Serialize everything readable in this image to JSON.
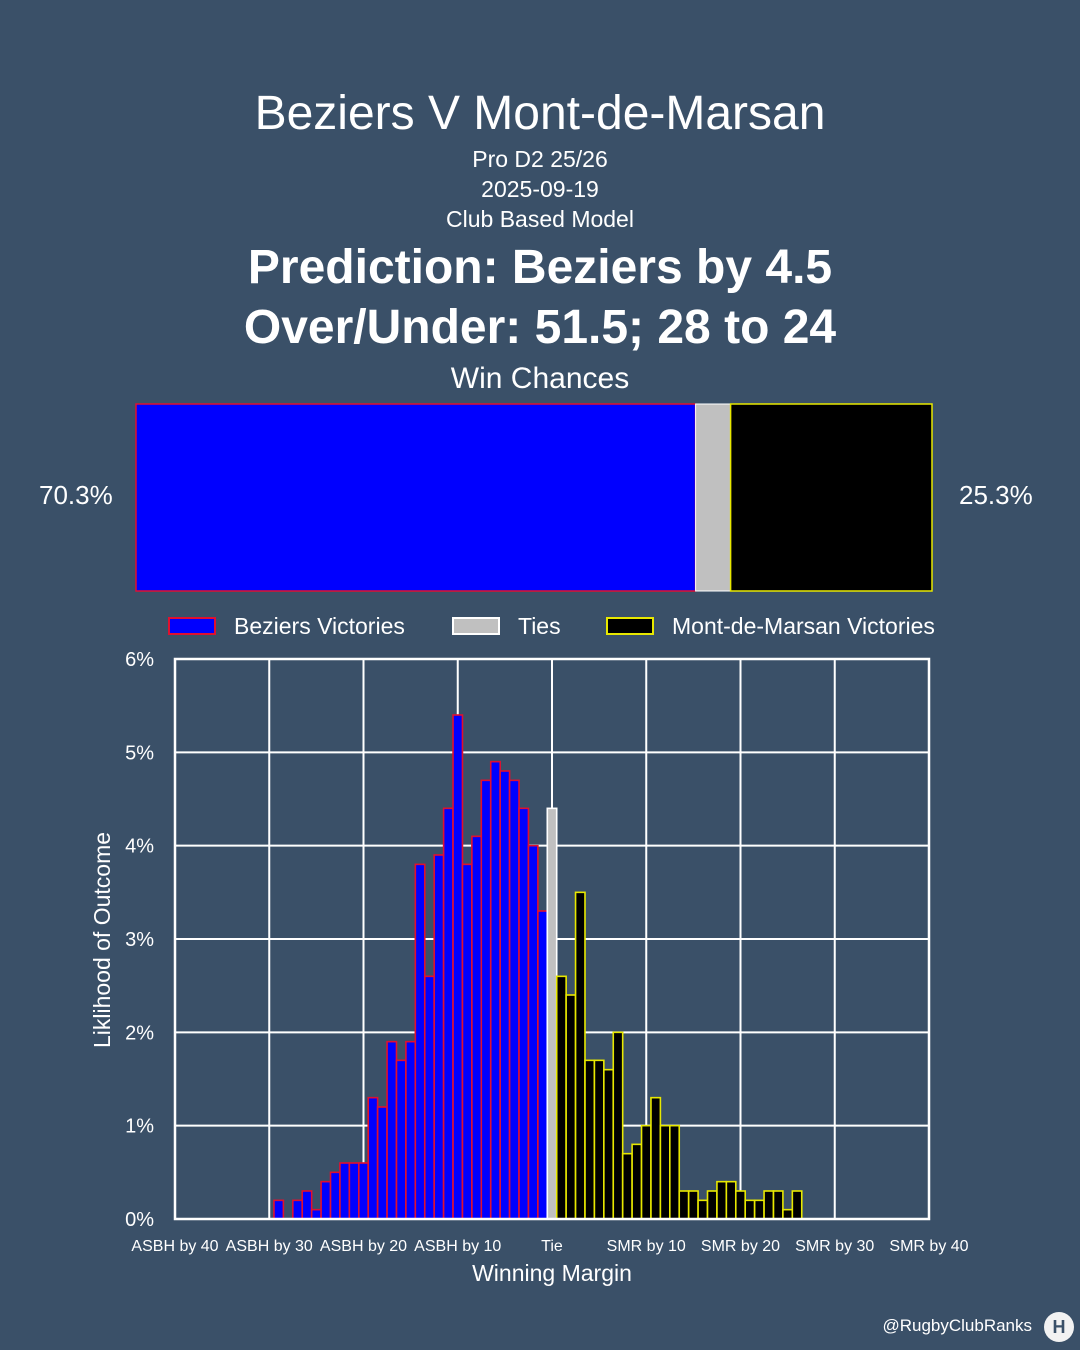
{
  "header": {
    "title": "Beziers V Mont-de-Marsan",
    "competition": "Pro D2 25/26",
    "date": "2025-09-19",
    "model": "Club Based Model",
    "prediction": "Prediction: Beziers by 4.5",
    "over_under": "Over/Under: 51.5; 28 to 24"
  },
  "win_chances": {
    "title": "Win Chances",
    "home_pct_label": "70.3%",
    "away_pct_label": "25.3%",
    "home": 70.3,
    "tie": 4.4,
    "away": 25.3
  },
  "legend": {
    "home": "Beziers Victories",
    "ties": "Ties",
    "away": "Mont-de-Marsan Victories"
  },
  "colors": {
    "background": "#3a5068",
    "home_fill": "#0000ff",
    "home_edge": "#e01030",
    "tie_fill": "#c0c0c0",
    "away_fill": "#000000",
    "away_edge": "#e8e800"
  },
  "chart_data": {
    "type": "bar",
    "xlabel": "Winning Margin",
    "ylabel": "Liklihood of Outcome",
    "xlim": [
      -40,
      40
    ],
    "ylim": [
      0,
      6
    ],
    "grid": true,
    "x_ticks": [
      {
        "value": -40,
        "label": "ASBH by 40"
      },
      {
        "value": -30,
        "label": "ASBH by 30"
      },
      {
        "value": -20,
        "label": "ASBH by 20"
      },
      {
        "value": -10,
        "label": "ASBH by 10"
      },
      {
        "value": 0,
        "label": "Tie"
      },
      {
        "value": 10,
        "label": "SMR by 10"
      },
      {
        "value": 20,
        "label": "SMR by 20"
      },
      {
        "value": 30,
        "label": "SMR by 30"
      },
      {
        "value": 40,
        "label": "SMR by 40"
      }
    ],
    "y_ticks": [
      "0%",
      "1%",
      "2%",
      "3%",
      "4%",
      "5%",
      "6%"
    ],
    "series": [
      {
        "name": "Beziers Victories",
        "x": [
          -29,
          -28,
          -27,
          -26,
          -25,
          -24,
          -23,
          -22,
          -21,
          -20,
          -19,
          -18,
          -17,
          -16,
          -15,
          -14,
          -13,
          -12,
          -11,
          -10,
          -9,
          -8,
          -7,
          -6,
          -5,
          -4,
          -3,
          -2,
          -1
        ],
        "values": [
          0.2,
          0.0,
          0.2,
          0.3,
          0.1,
          0.4,
          0.5,
          0.6,
          0.6,
          0.6,
          1.3,
          1.2,
          1.9,
          1.7,
          1.9,
          3.8,
          2.6,
          3.9,
          4.4,
          5.4,
          3.8,
          4.1,
          4.7,
          4.9,
          4.8,
          4.7,
          4.4,
          4.0,
          3.3
        ]
      },
      {
        "name": "Ties",
        "x": [
          0
        ],
        "values": [
          4.4
        ]
      },
      {
        "name": "Mont-de-Marsan Victories",
        "x": [
          1,
          2,
          3,
          4,
          5,
          6,
          7,
          8,
          9,
          10,
          11,
          12,
          13,
          14,
          15,
          16,
          17,
          18,
          19,
          20,
          21,
          22,
          23,
          24,
          25,
          26,
          27
        ],
        "values": [
          2.6,
          2.4,
          3.5,
          1.7,
          1.7,
          1.6,
          2.0,
          0.7,
          0.8,
          1.0,
          1.3,
          1.0,
          1.0,
          0.3,
          0.3,
          0.2,
          0.3,
          0.4,
          0.4,
          0.3,
          0.2,
          0.2,
          0.3,
          0.3,
          0.1,
          0.3,
          0.0
        ]
      }
    ]
  },
  "footer": {
    "handle": "@RugbyClubRanks",
    "logo_text": "H"
  }
}
